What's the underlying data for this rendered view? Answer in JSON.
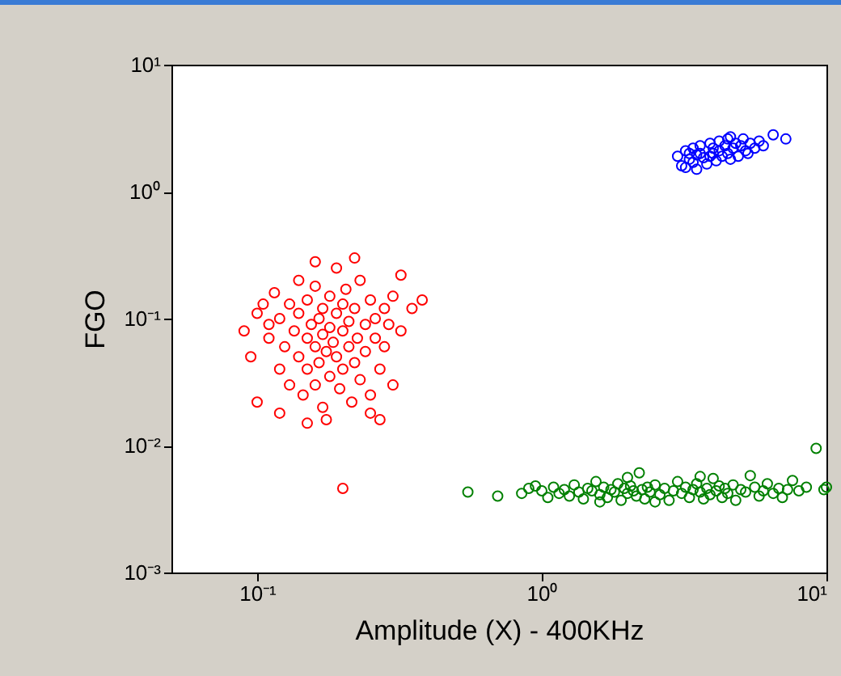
{
  "chart_data": {
    "type": "scatter",
    "xlabel": "Amplitude (X) - 400KHz",
    "ylabel": "FGO",
    "log": "xy",
    "grid": false,
    "marker": "circle",
    "xlim": [
      0.05,
      10
    ],
    "ylim": [
      0.001,
      10
    ],
    "xticks": [
      {
        "value": 0.1,
        "label": "10⁻¹"
      },
      {
        "value": 1,
        "label": "10⁰"
      },
      {
        "value": 10,
        "label": "10¹"
      }
    ],
    "yticks": [
      {
        "value": 0.001,
        "label": "10⁻³"
      },
      {
        "value": 0.01,
        "label": "10⁻²"
      },
      {
        "value": 0.1,
        "label": "10⁻¹"
      },
      {
        "value": 1,
        "label": "10⁰"
      },
      {
        "value": 10,
        "label": "10¹"
      }
    ],
    "series": [
      {
        "color": "#ff0000",
        "x": [
          0.09,
          0.095,
          0.1,
          0.1,
          0.105,
          0.11,
          0.11,
          0.115,
          0.12,
          0.12,
          0.125,
          0.13,
          0.13,
          0.135,
          0.14,
          0.14,
          0.14,
          0.145,
          0.15,
          0.15,
          0.15,
          0.155,
          0.16,
          0.16,
          0.16,
          0.165,
          0.165,
          0.17,
          0.17,
          0.17,
          0.175,
          0.18,
          0.18,
          0.18,
          0.185,
          0.19,
          0.19,
          0.19,
          0.195,
          0.2,
          0.2,
          0.2,
          0.205,
          0.21,
          0.21,
          0.215,
          0.22,
          0.22,
          0.225,
          0.23,
          0.23,
          0.24,
          0.24,
          0.25,
          0.25,
          0.26,
          0.26,
          0.27,
          0.28,
          0.28,
          0.29,
          0.3,
          0.3,
          0.32,
          0.32,
          0.35,
          0.38,
          0.22,
          0.16,
          0.12,
          0.175,
          0.25,
          0.2,
          0.15,
          0.27
        ],
        "values": [
          0.08,
          0.05,
          0.11,
          0.022,
          0.13,
          0.09,
          0.07,
          0.16,
          0.04,
          0.1,
          0.06,
          0.13,
          0.03,
          0.08,
          0.05,
          0.2,
          0.11,
          0.025,
          0.07,
          0.14,
          0.04,
          0.09,
          0.06,
          0.18,
          0.03,
          0.1,
          0.045,
          0.075,
          0.12,
          0.02,
          0.055,
          0.15,
          0.085,
          0.035,
          0.065,
          0.25,
          0.11,
          0.05,
          0.028,
          0.08,
          0.13,
          0.04,
          0.17,
          0.06,
          0.095,
          0.022,
          0.12,
          0.045,
          0.07,
          0.2,
          0.033,
          0.09,
          0.055,
          0.14,
          0.025,
          0.07,
          0.1,
          0.04,
          0.12,
          0.06,
          0.09,
          0.15,
          0.03,
          0.22,
          0.08,
          0.12,
          0.14,
          0.3,
          0.28,
          0.018,
          0.016,
          0.018,
          0.0046,
          0.015,
          0.016
        ]
      },
      {
        "color": "#0000ff",
        "x": [
          3.0,
          3.1,
          3.2,
          3.3,
          3.4,
          3.4,
          3.5,
          3.5,
          3.6,
          3.6,
          3.7,
          3.3,
          3.8,
          3.9,
          3.9,
          4.0,
          4.0,
          4.1,
          4.2,
          4.2,
          4.3,
          4.4,
          4.5,
          4.5,
          4.6,
          4.7,
          4.8,
          4.9,
          5.0,
          5.1,
          5.2,
          5.4,
          5.6,
          5.8,
          6.0,
          6.5,
          7.2,
          3.2,
          4.6,
          5.3
        ],
        "values": [
          1.9,
          1.6,
          2.1,
          1.8,
          1.7,
          2.2,
          1.95,
          1.5,
          2.0,
          2.3,
          1.85,
          2.0,
          1.65,
          2.4,
          1.9,
          2.0,
          2.2,
          1.75,
          2.1,
          2.5,
          1.9,
          2.3,
          2.0,
          2.6,
          1.8,
          2.2,
          2.4,
          1.9,
          2.3,
          2.6,
          2.1,
          2.4,
          2.2,
          2.5,
          2.3,
          2.8,
          2.6,
          1.55,
          2.7,
          2.0
        ]
      },
      {
        "color": "#008000",
        "x": [
          0.55,
          0.7,
          0.85,
          0.9,
          0.95,
          1.0,
          1.05,
          1.1,
          1.15,
          1.2,
          1.25,
          1.3,
          1.35,
          1.4,
          1.45,
          1.5,
          1.55,
          1.6,
          1.65,
          1.7,
          1.75,
          1.8,
          1.85,
          1.9,
          1.95,
          2.0,
          2.05,
          2.1,
          2.15,
          2.2,
          2.25,
          2.3,
          2.35,
          2.4,
          2.5,
          2.6,
          2.7,
          2.8,
          2.9,
          3.0,
          3.1,
          3.2,
          3.3,
          3.4,
          3.5,
          3.6,
          3.7,
          3.8,
          3.9,
          4.0,
          4.1,
          4.2,
          4.3,
          4.4,
          4.5,
          4.7,
          4.8,
          5.0,
          5.2,
          5.4,
          5.6,
          5.8,
          6.0,
          6.2,
          6.5,
          6.8,
          7.0,
          7.3,
          7.6,
          8.0,
          8.5,
          9.2,
          9.8,
          10.0,
          1.6,
          2.5,
          3.6,
          2.0
        ],
        "values": [
          0.0043,
          0.004,
          0.0042,
          0.0046,
          0.0048,
          0.0044,
          0.0039,
          0.0047,
          0.0042,
          0.0045,
          0.004,
          0.0049,
          0.0043,
          0.0038,
          0.0046,
          0.0044,
          0.0052,
          0.0041,
          0.0047,
          0.0039,
          0.0045,
          0.0043,
          0.005,
          0.0037,
          0.0046,
          0.0042,
          0.0048,
          0.0044,
          0.004,
          0.0061,
          0.0045,
          0.0038,
          0.0047,
          0.0043,
          0.0049,
          0.0041,
          0.0046,
          0.0037,
          0.0044,
          0.0052,
          0.0042,
          0.0047,
          0.0039,
          0.0045,
          0.005,
          0.0043,
          0.0038,
          0.0046,
          0.0041,
          0.0055,
          0.0044,
          0.0048,
          0.0039,
          0.0046,
          0.0042,
          0.0049,
          0.0037,
          0.0045,
          0.0043,
          0.0058,
          0.0047,
          0.004,
          0.0044,
          0.005,
          0.0042,
          0.0046,
          0.0039,
          0.0045,
          0.0053,
          0.0044,
          0.0047,
          0.0095,
          0.0045,
          0.0047,
          0.0036,
          0.0036,
          0.0057,
          0.0056
        ]
      }
    ]
  }
}
